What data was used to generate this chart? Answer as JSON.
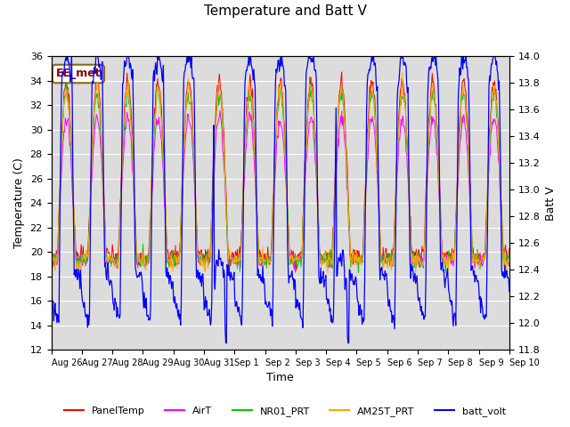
{
  "title": "Temperature and Batt V",
  "xlabel": "Time",
  "ylabel_left": "Temperature (C)",
  "ylabel_right": "Batt V",
  "ylim_left": [
    12,
    36
  ],
  "ylim_right": [
    11.8,
    14.0
  ],
  "yticks_left": [
    12,
    14,
    16,
    18,
    20,
    22,
    24,
    26,
    28,
    30,
    32,
    34,
    36
  ],
  "yticks_right": [
    11.8,
    12.0,
    12.2,
    12.4,
    12.6,
    12.8,
    13.0,
    13.2,
    13.4,
    13.6,
    13.8,
    14.0
  ],
  "annotation": "EE_met",
  "annotation_color": "#8B0000",
  "legend_entries": [
    "PanelTemp",
    "AirT",
    "NR01_PRT",
    "AM25T_PRT",
    "batt_volt"
  ],
  "legend_colors": [
    "#FF0000",
    "#FF00FF",
    "#00CC00",
    "#FFA500",
    "#0000FF"
  ],
  "line_colors": {
    "PanelTemp": "#FF0000",
    "AirT": "#FF00FF",
    "NR01_PRT": "#00CC00",
    "AM25T_PRT": "#FFA500",
    "batt_volt": "#0000FF"
  },
  "background_color": "#DCDCDC",
  "n_days": 15,
  "tick_labels": [
    "Aug 26",
    "Aug 27",
    "Aug 28",
    "Aug 29",
    "Aug 30",
    "Aug 31",
    "Sep 1",
    "Sep 2",
    "Sep 3",
    "Sep 4",
    "Sep 5",
    "Sep 6",
    "Sep 7",
    "Sep 8",
    "Sep 9",
    "Sep 10"
  ],
  "tick_positions": [
    0,
    1,
    2,
    3,
    4,
    5,
    6,
    7,
    8,
    9,
    10,
    11,
    12,
    13,
    14,
    15
  ]
}
